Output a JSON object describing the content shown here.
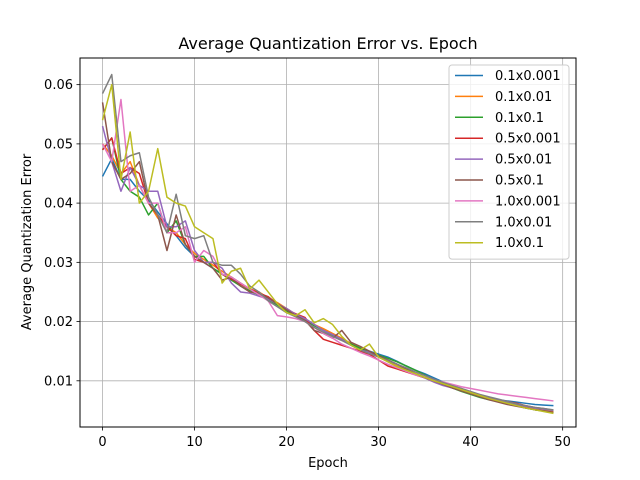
{
  "chart_data": {
    "type": "line",
    "title": "Average Quantization Error vs. Epoch",
    "xlabel": "Epoch",
    "ylabel": "Average Quantization Error",
    "xlim": [
      -2.45,
      51.45
    ],
    "ylim": [
      0.0022,
      0.0645
    ],
    "x_ticks": [
      0,
      10,
      20,
      30,
      40,
      50
    ],
    "y_ticks": [
      0.01,
      0.02,
      0.03,
      0.04,
      0.05,
      0.06
    ],
    "y_tick_labels": [
      "0.01",
      "0.02",
      "0.03",
      "0.04",
      "0.05",
      "0.06"
    ],
    "grid": true,
    "legend_position": "top-right",
    "x": [
      0,
      1,
      2,
      3,
      4,
      5,
      6,
      7,
      8,
      9,
      10,
      11,
      12,
      13,
      14,
      15,
      16,
      17,
      18,
      19,
      20,
      21,
      22,
      23,
      24,
      25,
      26,
      27,
      28,
      29,
      30,
      31,
      32,
      33,
      34,
      35,
      36,
      37,
      38,
      39,
      40,
      41,
      42,
      43,
      44,
      45,
      46,
      47,
      48,
      49
    ],
    "series": [
      {
        "name": "0.1x0.001",
        "color": "#1f77b4",
        "values": [
          0.0445,
          0.0475,
          0.044,
          0.044,
          0.042,
          0.0405,
          0.0385,
          0.0365,
          0.0345,
          0.0325,
          0.031,
          0.03,
          0.029,
          0.028,
          0.0275,
          0.0265,
          0.0255,
          0.0245,
          0.0238,
          0.023,
          0.0222,
          0.0212,
          0.0205,
          0.0195,
          0.0185,
          0.0178,
          0.017,
          0.0162,
          0.0155,
          0.015,
          0.0145,
          0.014,
          0.0133,
          0.0125,
          0.0118,
          0.0112,
          0.0105,
          0.0098,
          0.0092,
          0.0086,
          0.008,
          0.0076,
          0.0072,
          0.0068,
          0.0066,
          0.0064,
          0.0062,
          0.006,
          0.0059,
          0.0058
        ]
      },
      {
        "name": "0.1x0.01",
        "color": "#ff7f0e",
        "values": [
          0.05,
          0.048,
          0.045,
          0.047,
          0.043,
          0.04,
          0.0375,
          0.036,
          0.035,
          0.033,
          0.0315,
          0.0305,
          0.0295,
          0.0285,
          0.0275,
          0.0265,
          0.0255,
          0.025,
          0.024,
          0.0232,
          0.0222,
          0.0212,
          0.0205,
          0.0195,
          0.0188,
          0.018,
          0.0172,
          0.0163,
          0.0155,
          0.0148,
          0.014,
          0.0133,
          0.0125,
          0.0118,
          0.0112,
          0.0105,
          0.0098,
          0.0093,
          0.0088,
          0.0083,
          0.0078,
          0.0074,
          0.007,
          0.0066,
          0.0062,
          0.0058,
          0.0055,
          0.0052,
          0.005,
          0.0048
        ]
      },
      {
        "name": "0.1x0.1",
        "color": "#2ca02c",
        "values": [
          0.049,
          0.051,
          0.044,
          0.042,
          0.041,
          0.038,
          0.04,
          0.035,
          0.037,
          0.033,
          0.031,
          0.031,
          0.029,
          0.028,
          0.027,
          0.026,
          0.0252,
          0.0245,
          0.0237,
          0.0228,
          0.0218,
          0.021,
          0.0202,
          0.0193,
          0.0185,
          0.0177,
          0.017,
          0.0162,
          0.0155,
          0.0148,
          0.0143,
          0.0138,
          0.0132,
          0.0125,
          0.0118,
          0.011,
          0.0102,
          0.0095,
          0.0088,
          0.0082,
          0.0077,
          0.0072,
          0.0068,
          0.0065,
          0.0062,
          0.0058,
          0.0054,
          0.0051,
          0.0049,
          0.0046
        ]
      },
      {
        "name": "0.5x0.001",
        "color": "#d62728",
        "values": [
          0.049,
          0.051,
          0.045,
          0.046,
          0.045,
          0.04,
          0.038,
          0.036,
          0.0345,
          0.034,
          0.0305,
          0.03,
          0.03,
          0.028,
          0.0272,
          0.0263,
          0.0255,
          0.0248,
          0.0242,
          0.023,
          0.022,
          0.0213,
          0.0207,
          0.0185,
          0.017,
          0.0165,
          0.016,
          0.0155,
          0.015,
          0.0145,
          0.0135,
          0.0125,
          0.012,
          0.0115,
          0.011,
          0.0105,
          0.01,
          0.0095,
          0.009,
          0.0085,
          0.008,
          0.0076,
          0.0072,
          0.0068,
          0.0065,
          0.0062,
          0.0058,
          0.0055,
          0.0053,
          0.005
        ]
      },
      {
        "name": "0.5x0.01",
        "color": "#9467bd",
        "values": [
          0.053,
          0.047,
          0.042,
          0.046,
          0.043,
          0.042,
          0.042,
          0.036,
          0.036,
          0.037,
          0.032,
          0.03,
          0.03,
          0.029,
          0.0265,
          0.025,
          0.0248,
          0.0243,
          0.0238,
          0.023,
          0.0222,
          0.0212,
          0.0205,
          0.0195,
          0.0185,
          0.0178,
          0.017,
          0.016,
          0.0152,
          0.0148,
          0.0142,
          0.0135,
          0.0128,
          0.012,
          0.0112,
          0.0105,
          0.0098,
          0.0092,
          0.0088,
          0.0084,
          0.008,
          0.0076,
          0.0072,
          0.0068,
          0.0064,
          0.006,
          0.0057,
          0.0054,
          0.0052,
          0.005
        ]
      },
      {
        "name": "0.5x0.1",
        "color": "#8c564b",
        "values": [
          0.057,
          0.047,
          0.044,
          0.045,
          0.047,
          0.04,
          0.038,
          0.032,
          0.038,
          0.033,
          0.031,
          0.03,
          0.029,
          0.027,
          0.0275,
          0.026,
          0.025,
          0.0248,
          0.024,
          0.023,
          0.022,
          0.021,
          0.0202,
          0.0185,
          0.018,
          0.0172,
          0.0185,
          0.0165,
          0.0158,
          0.015,
          0.0142,
          0.0135,
          0.0128,
          0.012,
          0.0112,
          0.0106,
          0.01,
          0.0094,
          0.0088,
          0.0083,
          0.0078,
          0.0073,
          0.0068,
          0.0064,
          0.006,
          0.0057,
          0.0054,
          0.0051,
          0.0049,
          0.0047
        ]
      },
      {
        "name": "1.0x0.001",
        "color": "#e377c2",
        "values": [
          0.05,
          0.047,
          0.0575,
          0.042,
          0.043,
          0.04,
          0.04,
          0.035,
          0.035,
          0.036,
          0.03,
          0.032,
          0.031,
          0.028,
          0.0275,
          0.0265,
          0.0255,
          0.0245,
          0.0235,
          0.021,
          0.0208,
          0.0205,
          0.02,
          0.019,
          0.018,
          0.0172,
          0.0162,
          0.0155,
          0.0148,
          0.0142,
          0.0135,
          0.0128,
          0.0122,
          0.0116,
          0.011,
          0.0106,
          0.0102,
          0.0098,
          0.0094,
          0.009,
          0.0087,
          0.0084,
          0.0081,
          0.0078,
          0.0076,
          0.0074,
          0.0072,
          0.007,
          0.0068,
          0.0066
        ]
      },
      {
        "name": "1.0x0.01",
        "color": "#7f7f7f",
        "values": [
          0.0585,
          0.0617,
          0.047,
          0.048,
          0.0485,
          0.041,
          0.038,
          0.035,
          0.0415,
          0.0345,
          0.034,
          0.0345,
          0.03,
          0.0295,
          0.0295,
          0.028,
          0.026,
          0.025,
          0.0235,
          0.0225,
          0.0215,
          0.0208,
          0.02,
          0.019,
          0.0182,
          0.0175,
          0.0168,
          0.016,
          0.0152,
          0.0146,
          0.014,
          0.0134,
          0.0128,
          0.0122,
          0.0115,
          0.0109,
          0.0103,
          0.0097,
          0.0092,
          0.0087,
          0.0082,
          0.0077,
          0.0073,
          0.0069,
          0.0065,
          0.0061,
          0.0058,
          0.0055,
          0.0053,
          0.0051
        ]
      },
      {
        "name": "1.0x0.1",
        "color": "#bcbd22",
        "values": [
          0.054,
          0.06,
          0.044,
          0.052,
          0.04,
          0.042,
          0.0492,
          0.041,
          0.04,
          0.0395,
          0.036,
          0.035,
          0.034,
          0.0265,
          0.0285,
          0.029,
          0.0255,
          0.027,
          0.025,
          0.023,
          0.0215,
          0.021,
          0.022,
          0.0198,
          0.0205,
          0.0195,
          0.0175,
          0.016,
          0.0152,
          0.0162,
          0.014,
          0.0132,
          0.0124,
          0.0118,
          0.0112,
          0.0106,
          0.01,
          0.0095,
          0.009,
          0.0085,
          0.008,
          0.0075,
          0.007,
          0.0066,
          0.0062,
          0.0058,
          0.0054,
          0.0051,
          0.0048,
          0.0045
        ]
      }
    ]
  }
}
